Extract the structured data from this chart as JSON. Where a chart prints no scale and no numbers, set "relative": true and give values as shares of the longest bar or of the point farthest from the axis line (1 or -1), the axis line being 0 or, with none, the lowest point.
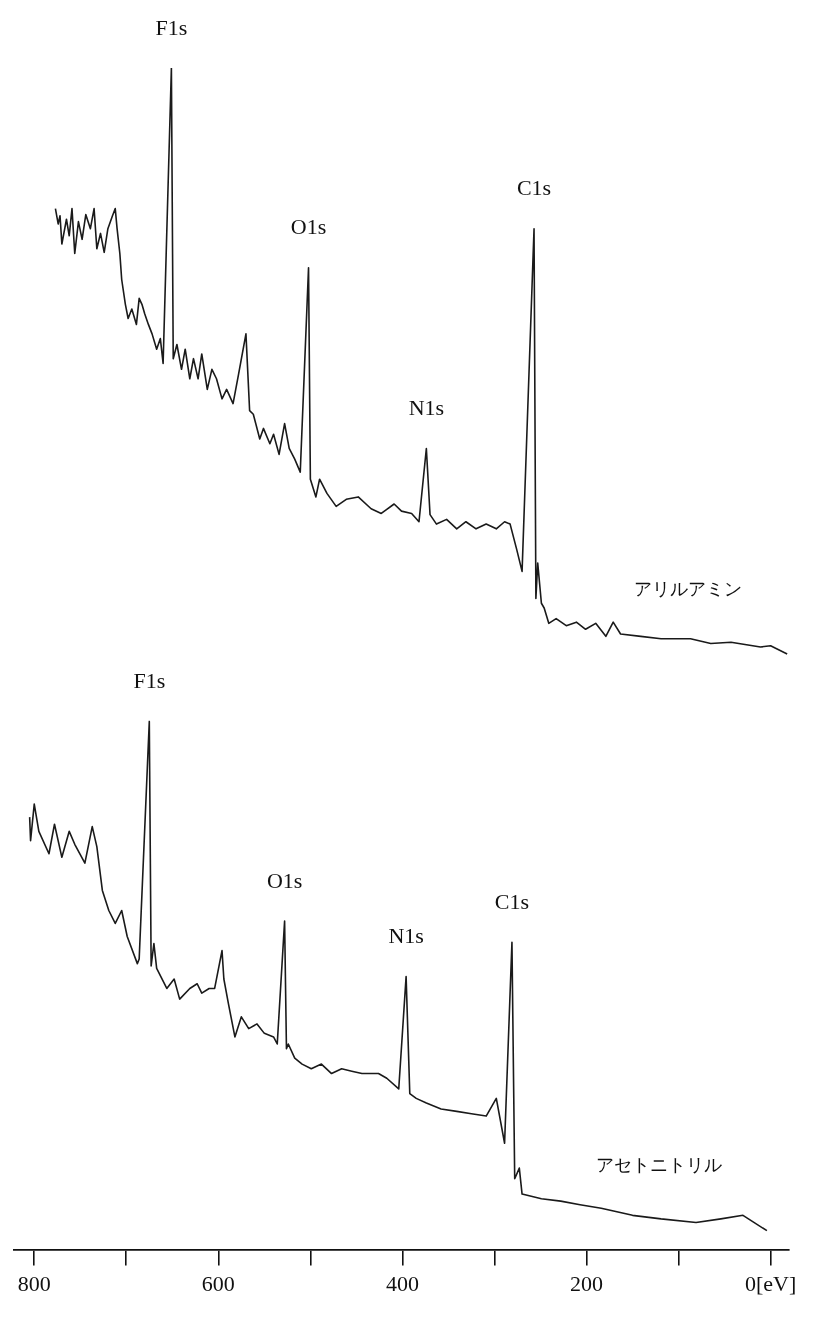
{
  "chart_data": {
    "type": "line",
    "relative": true,
    "xlim": [
      822,
      -20
    ],
    "xticks": [
      800,
      {
        "value": 700,
        "label": null
      },
      600,
      {
        "value": 500,
        "label": null
      },
      400,
      {
        "value": 300,
        "label": null
      },
      200,
      {
        "value": 100,
        "label": null
      },
      {
        "value": 0,
        "label": "0[eV]"
      }
    ],
    "series": [
      {
        "name": "アリルアミン",
        "color": "#1a1a1a",
        "x": [
          777,
          774,
          772,
          770,
          765,
          762,
          759,
          756,
          752,
          748,
          744,
          739,
          735,
          732,
          728,
          724,
          720,
          715,
          712,
          710,
          707,
          705,
          701,
          698,
          694,
          689,
          686,
          683,
          680,
          676,
          672,
          667,
          663,
          660,
          651,
          649,
          645,
          640,
          636,
          631,
          627,
          622,
          618,
          612,
          607,
          602,
          596,
          591,
          584,
          578,
          570,
          566,
          562,
          555,
          551,
          544,
          540,
          534,
          528,
          523,
          517,
          511,
          502,
          500,
          494,
          490,
          482,
          472,
          461,
          448,
          434,
          423,
          409,
          401,
          390,
          382,
          374,
          370,
          363,
          352,
          341,
          331,
          320,
          309,
          298,
          289,
          283,
          276,
          270,
          257,
          255,
          253,
          249,
          246,
          241,
          233,
          222,
          211,
          201,
          190,
          179,
          171,
          163,
          141,
          119,
          87,
          65,
          43,
          11,
          0,
          -18
        ],
        "values": [
          0.881,
          0.868,
          0.875,
          0.851,
          0.872,
          0.858,
          0.881,
          0.843,
          0.87,
          0.855,
          0.876,
          0.864,
          0.881,
          0.847,
          0.86,
          0.844,
          0.864,
          0.875,
          0.881,
          0.864,
          0.843,
          0.821,
          0.8,
          0.788,
          0.796,
          0.783,
          0.805,
          0.8,
          0.792,
          0.783,
          0.775,
          0.762,
          0.771,
          0.75,
          1.0,
          0.754,
          0.766,
          0.745,
          0.762,
          0.737,
          0.754,
          0.737,
          0.758,
          0.728,
          0.745,
          0.737,
          0.72,
          0.728,
          0.716,
          0.741,
          0.775,
          0.71,
          0.707,
          0.686,
          0.695,
          0.682,
          0.69,
          0.673,
          0.699,
          0.678,
          0.669,
          0.658,
          0.831,
          0.652,
          0.637,
          0.652,
          0.64,
          0.629,
          0.635,
          0.637,
          0.627,
          0.623,
          0.631,
          0.625,
          0.623,
          0.616,
          0.678,
          0.622,
          0.614,
          0.618,
          0.61,
          0.616,
          0.61,
          0.614,
          0.61,
          0.616,
          0.614,
          0.593,
          0.574,
          0.864,
          0.551,
          0.581,
          0.547,
          0.543,
          0.53,
          0.534,
          0.528,
          0.531,
          0.525,
          0.53,
          0.519,
          0.531,
          0.521,
          0.519,
          0.517,
          0.517,
          0.513,
          0.514,
          0.51,
          0.511,
          0.504
        ]
      },
      {
        "name": "アセトニトリル",
        "color": "#1a1a1a",
        "x": [
          805,
          804,
          800,
          795,
          784,
          778,
          770,
          762,
          756,
          745,
          737,
          732,
          726,
          719,
          712,
          705,
          699,
          688,
          686,
          675,
          673,
          670,
          667,
          656,
          648,
          642,
          631,
          623,
          618,
          610,
          604,
          596,
          594,
          589,
          582,
          575,
          567,
          558,
          550,
          540,
          536,
          528,
          526,
          524,
          517,
          509,
          499,
          488,
          477,
          466,
          455,
          444,
          426,
          417,
          404,
          396,
          392,
          385,
          374,
          358,
          341,
          325,
          309,
          298,
          289,
          281,
          278,
          273,
          270,
          249,
          228,
          207,
          184,
          150,
          119,
          81,
          54,
          30,
          4
        ],
        "values": [
          0.366,
          0.346,
          0.377,
          0.354,
          0.335,
          0.36,
          0.332,
          0.354,
          0.343,
          0.327,
          0.358,
          0.341,
          0.304,
          0.287,
          0.276,
          0.287,
          0.265,
          0.242,
          0.246,
          0.447,
          0.24,
          0.259,
          0.238,
          0.221,
          0.229,
          0.212,
          0.221,
          0.225,
          0.217,
          0.221,
          0.221,
          0.253,
          0.229,
          0.208,
          0.18,
          0.197,
          0.187,
          0.191,
          0.183,
          0.18,
          0.174,
          0.278,
          0.17,
          0.174,
          0.162,
          0.157,
          0.153,
          0.157,
          0.149,
          0.153,
          0.151,
          0.149,
          0.149,
          0.145,
          0.136,
          0.231,
          0.132,
          0.128,
          0.124,
          0.119,
          0.117,
          0.115,
          0.113,
          0.128,
          0.09,
          0.26,
          0.06,
          0.069,
          0.047,
          0.043,
          0.041,
          0.038,
          0.035,
          0.029,
          0.026,
          0.023,
          0.026,
          0.029,
          0.016
        ]
      }
    ],
    "annotations": [
      {
        "text": "F1s",
        "x": 651,
        "y": 1.0
      },
      {
        "text": "O1s",
        "x": 502,
        "y": 0.831
      },
      {
        "text": "N1s",
        "x": 374,
        "y": 0.678
      },
      {
        "text": "C1s",
        "x": 257,
        "y": 0.864
      },
      {
        "text": "F1s",
        "x": 675,
        "y": 0.447
      },
      {
        "text": "O1s",
        "x": 528,
        "y": 0.278
      },
      {
        "text": "N1s",
        "x": 396,
        "y": 0.231
      },
      {
        "text": "C1s",
        "x": 281,
        "y": 0.26
      }
    ]
  }
}
